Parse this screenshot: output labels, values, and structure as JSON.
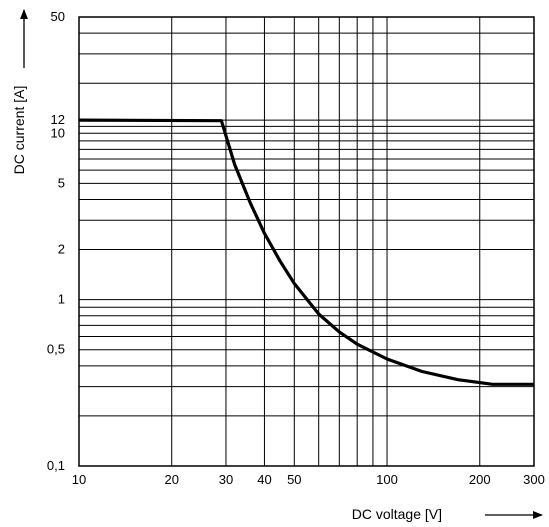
{
  "chart_data": {
    "type": "line",
    "xlabel": "DC voltage [V]",
    "ylabel": "DC current [A]",
    "x_scale": "log",
    "y_scale": "log",
    "xlim": [
      10,
      300
    ],
    "ylim": [
      0.1,
      50
    ],
    "grid": true,
    "x_ticks": [
      {
        "value": 10,
        "label": "10"
      },
      {
        "value": 20,
        "label": "20"
      },
      {
        "value": 30,
        "label": "30"
      },
      {
        "value": 40,
        "label": "40"
      },
      {
        "value": 50,
        "label": "50"
      },
      {
        "value": 100,
        "label": "100"
      },
      {
        "value": 200,
        "label": "200"
      },
      {
        "value": 300,
        "label": "300"
      }
    ],
    "y_ticks": [
      {
        "value": 0.1,
        "label": "0,1"
      },
      {
        "value": 0.5,
        "label": "0,5"
      },
      {
        "value": 1,
        "label": "1"
      },
      {
        "value": 2,
        "label": "2"
      },
      {
        "value": 5,
        "label": "5"
      },
      {
        "value": 10,
        "label": "10"
      },
      {
        "value": 12,
        "label": "12"
      },
      {
        "value": 50,
        "label": "50"
      }
    ],
    "x_grid": [
      10,
      20,
      30,
      40,
      50,
      60,
      70,
      80,
      90,
      100,
      200,
      300
    ],
    "y_grid": [
      0.1,
      0.2,
      0.3,
      0.4,
      0.5,
      0.6,
      0.7,
      0.8,
      0.9,
      1,
      2,
      3,
      4,
      5,
      6,
      7,
      8,
      9,
      10,
      11,
      12,
      20,
      30,
      40,
      50
    ],
    "series": [
      {
        "points": [
          {
            "x": 10,
            "y": 12
          },
          {
            "x": 29,
            "y": 11.9
          },
          {
            "x": 32,
            "y": 6.5
          },
          {
            "x": 36,
            "y": 3.8
          },
          {
            "x": 40,
            "y": 2.5
          },
          {
            "x": 45,
            "y": 1.7
          },
          {
            "x": 50,
            "y": 1.25
          },
          {
            "x": 60,
            "y": 0.82
          },
          {
            "x": 70,
            "y": 0.64
          },
          {
            "x": 80,
            "y": 0.54
          },
          {
            "x": 100,
            "y": 0.44
          },
          {
            "x": 130,
            "y": 0.37
          },
          {
            "x": 170,
            "y": 0.33
          },
          {
            "x": 220,
            "y": 0.31
          },
          {
            "x": 300,
            "y": 0.31
          }
        ]
      }
    ]
  }
}
